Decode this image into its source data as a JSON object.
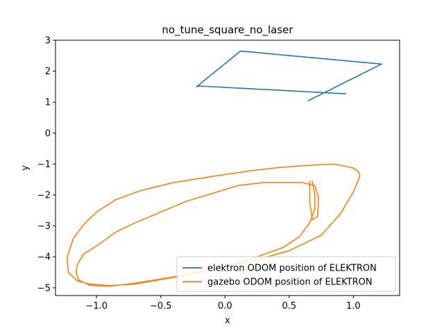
{
  "chart_data": {
    "type": "line",
    "title": "no_tune_square_no_laser",
    "xlabel": "x",
    "ylabel": "y",
    "xlim": [
      -1.32,
      1.36
    ],
    "ylim": [
      -5.25,
      3.0
    ],
    "xticks": [
      -1.0,
      -0.5,
      0.0,
      0.5,
      1.0
    ],
    "xtick_labels": [
      "−1.0",
      "−0.5",
      "0.0",
      "0.5",
      "1.0"
    ],
    "yticks": [
      -5,
      -4,
      -3,
      -2,
      -1,
      0,
      1,
      2,
      3
    ],
    "ytick_labels": [
      "−5",
      "−4",
      "−3",
      "−2",
      "−1",
      "0",
      "1",
      "2",
      "3"
    ],
    "grid": false,
    "legend_position": "lower-right",
    "series": [
      {
        "name": "elektron ODOM position of ELEKTRON",
        "color": "#1f77b4",
        "x": [
          0.65,
          1.22,
          0.12,
          -0.22,
          -0.2,
          0.94
        ],
        "y": [
          1.05,
          2.23,
          2.65,
          1.5,
          1.52,
          1.27
        ]
      },
      {
        "name": "gazebo ODOM position of ELEKTRON",
        "color": "#ff7f0e",
        "x": [
          0.66,
          0.66,
          0.68,
          0.72,
          0.73,
          0.7,
          0.6,
          0.45,
          0.3,
          0.1,
          -0.1,
          -0.3,
          -0.5,
          -0.7,
          -0.85,
          -0.95,
          -1.02,
          -1.1,
          -1.15,
          -1.16,
          -1.14,
          -1.05,
          -0.9,
          -0.7,
          -0.4,
          -0.1,
          0.2,
          0.5,
          0.75,
          0.9,
          1.0,
          1.05,
          1.04,
          1.0,
          0.85,
          0.7,
          0.45,
          0.2,
          -0.1,
          -0.4,
          -0.65,
          -0.85,
          -1.0,
          -1.1,
          -1.18,
          -1.23,
          -1.22,
          -1.15,
          -1.05,
          -0.9,
          -0.7,
          -0.45,
          -0.2,
          0.05,
          0.25,
          0.45,
          0.58,
          0.66,
          0.7,
          0.7,
          0.68
        ],
        "y": [
          -1.55,
          -2.2,
          -2.8,
          -2.7,
          -2.1,
          -1.7,
          -1.6,
          -1.6,
          -1.6,
          -1.7,
          -1.95,
          -2.2,
          -2.55,
          -2.9,
          -3.2,
          -3.5,
          -3.7,
          -3.9,
          -4.25,
          -4.5,
          -4.75,
          -4.92,
          -4.95,
          -4.85,
          -4.65,
          -4.4,
          -4.15,
          -3.8,
          -3.3,
          -2.6,
          -1.9,
          -1.4,
          -1.25,
          -1.13,
          -1.0,
          -1.03,
          -1.1,
          -1.22,
          -1.4,
          -1.6,
          -1.85,
          -2.15,
          -2.55,
          -2.95,
          -3.4,
          -4.0,
          -4.5,
          -4.78,
          -4.88,
          -4.93,
          -4.88,
          -4.7,
          -4.5,
          -4.25,
          -4.0,
          -3.7,
          -3.35,
          -2.9,
          -2.45,
          -2.0,
          -1.55
        ]
      }
    ]
  }
}
